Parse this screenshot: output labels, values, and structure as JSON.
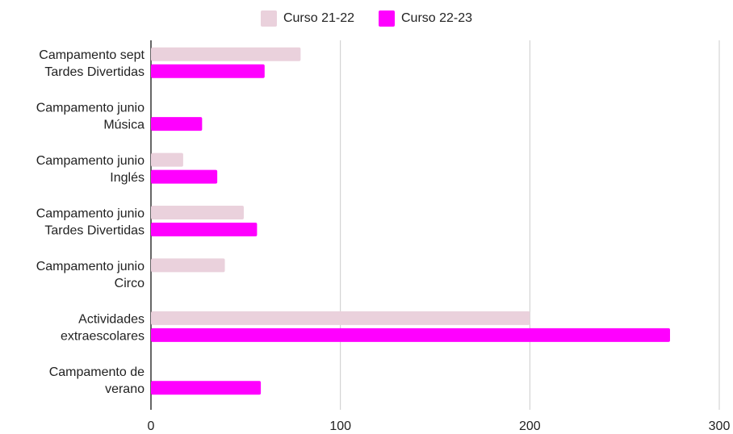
{
  "chart_data": {
    "type": "bar",
    "orientation": "horizontal",
    "categories": [
      [
        "Campamento sept",
        "Tardes Divertidas"
      ],
      [
        "Campamento junio",
        "Música"
      ],
      [
        "Campamento junio",
        "Inglés"
      ],
      [
        "Campamento junio",
        "Tardes Divertidas"
      ],
      [
        "Campamento junio",
        "Circo"
      ],
      [
        "Actividades",
        "extraescolares"
      ],
      [
        "Campamento de",
        "verano"
      ]
    ],
    "series": [
      {
        "name": "Curso 21-22",
        "color": "#ead1dc",
        "values": [
          79,
          0,
          17,
          49,
          39,
          200,
          0
        ]
      },
      {
        "name": "Curso 22-23",
        "color": "#ff00ff",
        "values": [
          60,
          27,
          35,
          56,
          0,
          274,
          58
        ]
      }
    ],
    "xlim": [
      0,
      300
    ],
    "xticks": [
      "0",
      "100",
      "200",
      "300"
    ],
    "grid": true,
    "legend": "top-center"
  }
}
